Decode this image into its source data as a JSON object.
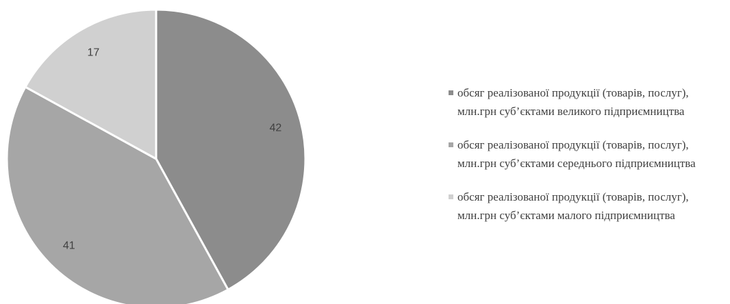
{
  "chart_data": {
    "type": "pie",
    "categories": [
      "обсяг реалізованої продукції (товарів, послуг), млн.грн суб’єктами великого підприємництва",
      "обсяг реалізованої продукції (товарів, послуг), млн.грн суб’єктами середнього підприємництва",
      "обсяг реалізованої продукції (товарів, послуг), млн.грн суб’єктами малого підприємництва"
    ],
    "values": [
      42,
      41,
      17
    ],
    "colors": [
      "#8c8c8c",
      "#a6a6a6",
      "#d0d0d0"
    ],
    "legend": "right"
  }
}
